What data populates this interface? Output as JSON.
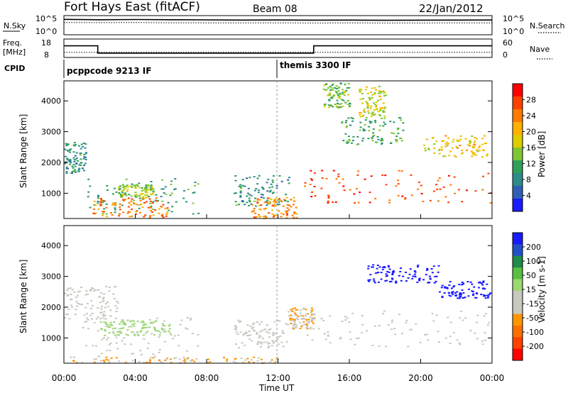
{
  "header": {
    "title": "Fort Hays East (fitACF)",
    "beam": "Beam 08",
    "date": "22/Jan/2012"
  },
  "noise_panel": {
    "left_label": "N.Sky",
    "right_label": "N.Search",
    "left_ticks": [
      "10^5",
      "10^0"
    ],
    "right_ticks": [
      "10^5",
      "10^0"
    ]
  },
  "freq_panel": {
    "left_label_1": "Freq.",
    "left_label_2": "[MHz]",
    "right_label": "Nave",
    "left_ticks": [
      "18",
      "8"
    ],
    "right_ticks": [
      "60",
      "0"
    ]
  },
  "cpid": {
    "label": "CPID",
    "segments": [
      "pcppcode 9213 IF",
      "themis 3300 IF"
    ]
  },
  "axes": {
    "ylabel": "Slant Range [km]",
    "xlabel": "Time UT",
    "y_ticks": [
      "1000",
      "2000",
      "3000",
      "4000"
    ],
    "x_ticks": [
      "00:00",
      "04:00",
      "08:00",
      "12:00",
      "16:00",
      "20:00",
      "00:00"
    ]
  },
  "power_colorbar": {
    "label": "Power [dB]",
    "ticks": [
      "28",
      "24",
      "20",
      "16",
      "12",
      "8",
      "4"
    ],
    "colors": [
      "#ff0000",
      "#ff4000",
      "#ff7a00",
      "#ffb000",
      "#ddcc00",
      "#7dc832",
      "#2f9f5a",
      "#2f8a8a",
      "#2f5fb4",
      "#1a1aff"
    ]
  },
  "velocity_colorbar": {
    "label": "Velocity [m s-1]",
    "ticks": [
      "200",
      "100",
      "50",
      "15",
      "-15",
      "-50",
      "-100",
      "-200"
    ],
    "colors": [
      "#1a1aff",
      "#2050c8",
      "#1f8a4a",
      "#56c040",
      "#9ad870",
      "#c8c8c0",
      "#c8c8c0",
      "#ff9600",
      "#ff7000",
      "#ff4000",
      "#ff0000"
    ]
  },
  "chart_data": [
    {
      "type": "line",
      "title": "",
      "series": [
        {
          "name": "N.Sky",
          "x": [
            0,
            2,
            4,
            6,
            8,
            10,
            12,
            14,
            16,
            18,
            20,
            22,
            24
          ],
          "y": [
            50000,
            40000,
            45000,
            38000,
            35000,
            30000,
            32000,
            28000,
            30000,
            26000,
            28000,
            30000,
            32000
          ]
        },
        {
          "name": "N.Search",
          "x": [
            0,
            2,
            4,
            6,
            8,
            10,
            12,
            14,
            16,
            18,
            20,
            22,
            24
          ],
          "y": [
            5000,
            4500,
            5000,
            4200,
            4000,
            3800,
            4000,
            3500,
            3800,
            3600,
            3500,
            3800,
            4000
          ]
        }
      ],
      "ylim": [
        1,
        100000
      ],
      "yscale": "log"
    },
    {
      "type": "line",
      "series": [
        {
          "name": "Freq.",
          "x": [
            0,
            1.9,
            1.9,
            14,
            14,
            24
          ],
          "y": [
            15,
            15,
            10.3,
            10.3,
            15,
            15
          ]
        },
        {
          "name": "Nave",
          "x": [
            0,
            24
          ],
          "y": [
            17,
            17
          ]
        }
      ],
      "ylim": [
        8,
        18
      ],
      "y2lim": [
        0,
        60
      ]
    },
    {
      "type": "heatmap",
      "title": "Power [dB]",
      "xlabel": "Time UT",
      "ylabel": "Slant Range [km]",
      "xlim": [
        0,
        24
      ],
      "ylim": [
        180,
        4650
      ],
      "clim": [
        0,
        30
      ],
      "regions": [
        {
          "t_start": 0,
          "t_end": 1.2,
          "r_start": 1650,
          "r_end": 2700,
          "db": 8
        },
        {
          "t_start": 1.3,
          "t_end": 7.5,
          "r_start": 350,
          "r_end": 1500,
          "db": 10
        },
        {
          "t_start": 1.6,
          "t_end": 5.8,
          "r_start": 220,
          "r_end": 900,
          "db": 24
        },
        {
          "t_start": 3.0,
          "t_end": 5.0,
          "r_start": 900,
          "r_end": 1300,
          "db": 14
        },
        {
          "t_start": 9.5,
          "t_end": 12.6,
          "r_start": 600,
          "r_end": 1600,
          "db": 8
        },
        {
          "t_start": 10.5,
          "t_end": 13.0,
          "r_start": 200,
          "r_end": 900,
          "db": 22
        },
        {
          "t_start": 13.4,
          "t_end": 24,
          "r_start": 700,
          "r_end": 1800,
          "db": 26
        },
        {
          "t_start": 14.5,
          "t_end": 16.0,
          "r_start": 3800,
          "r_end": 4600,
          "db": 12
        },
        {
          "t_start": 15.5,
          "t_end": 19.0,
          "r_start": 2600,
          "r_end": 3500,
          "db": 10
        },
        {
          "t_start": 20.0,
          "t_end": 24,
          "r_start": 2200,
          "r_end": 2900,
          "db": 18
        },
        {
          "t_start": 16.5,
          "t_end": 18.0,
          "r_start": 3500,
          "r_end": 4500,
          "db": 16
        }
      ]
    },
    {
      "type": "heatmap",
      "title": "Velocity [m s-1]",
      "xlabel": "Time UT",
      "ylabel": "Slant Range [km]",
      "xlim": [
        0,
        24
      ],
      "ylim": [
        180,
        4650
      ],
      "clim": [
        -200,
        200
      ],
      "regions": [
        {
          "t_start": 0,
          "t_end": 3.0,
          "r_start": 1600,
          "r_end": 2700,
          "v": 0
        },
        {
          "t_start": 1.0,
          "t_end": 7.5,
          "r_start": 400,
          "r_end": 1700,
          "v": 0
        },
        {
          "t_start": 2.0,
          "t_end": 6.0,
          "r_start": 1100,
          "r_end": 1600,
          "v": 40
        },
        {
          "t_start": 0,
          "t_end": 12,
          "r_start": 200,
          "r_end": 400,
          "v": -60
        },
        {
          "t_start": 9.5,
          "t_end": 12.5,
          "r_start": 700,
          "r_end": 1600,
          "v": 0
        },
        {
          "t_start": 13.5,
          "t_end": 24,
          "r_start": 700,
          "r_end": 1900,
          "v": 0
        },
        {
          "t_start": 17.0,
          "t_end": 21.0,
          "r_start": 2800,
          "r_end": 3400,
          "v": 200
        },
        {
          "t_start": 21.0,
          "t_end": 24,
          "r_start": 2300,
          "r_end": 2900,
          "v": 200
        },
        {
          "t_start": 12.5,
          "t_end": 14.0,
          "r_start": 1300,
          "r_end": 2000,
          "v": -60
        }
      ]
    }
  ]
}
